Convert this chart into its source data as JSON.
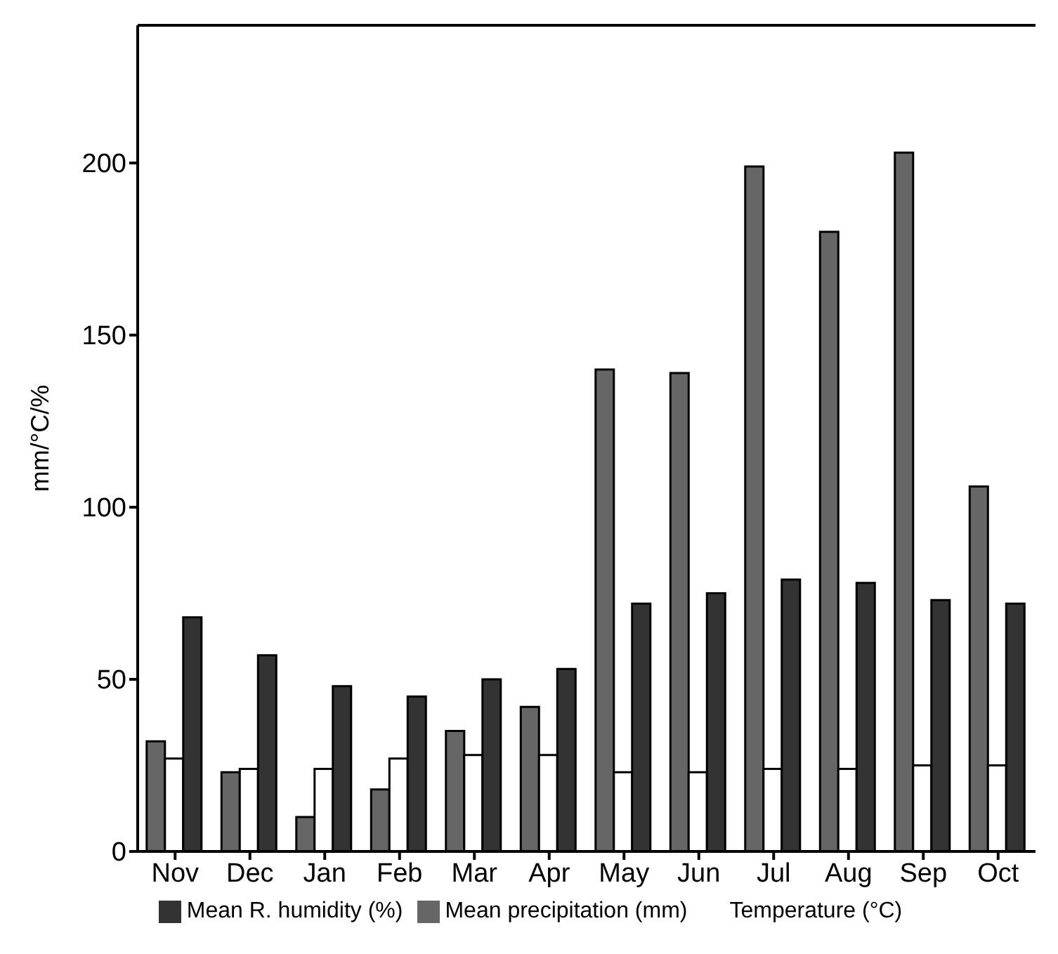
{
  "chart_data": {
    "type": "bar",
    "ylabel": "mm/°C/%",
    "categories": [
      "Nov",
      "Dec",
      "Jan",
      "Feb",
      "Mar",
      "Apr",
      "May",
      "Jun",
      "Jul",
      "Aug",
      "Sep",
      "Oct"
    ],
    "series": [
      {
        "name": "Mean precipitation (mm)",
        "color": "#666666",
        "values": [
          32,
          23,
          10,
          18,
          35,
          42,
          140,
          139,
          199,
          180,
          203,
          106
        ]
      },
      {
        "name": "Temperature (°C)",
        "color": "#ffffff",
        "values": [
          27,
          24,
          24,
          27,
          28,
          28,
          23,
          23,
          24,
          24,
          25,
          25
        ]
      },
      {
        "name": "Mean R. humidity (%)",
        "color": "#333333",
        "values": [
          68,
          57,
          48,
          45,
          50,
          53,
          72,
          75,
          79,
          78,
          73,
          72
        ]
      }
    ],
    "ylim": [
      0,
      240
    ],
    "yticks": [
      0,
      50,
      100,
      150,
      200
    ],
    "grid": false,
    "legend": "bottom"
  }
}
